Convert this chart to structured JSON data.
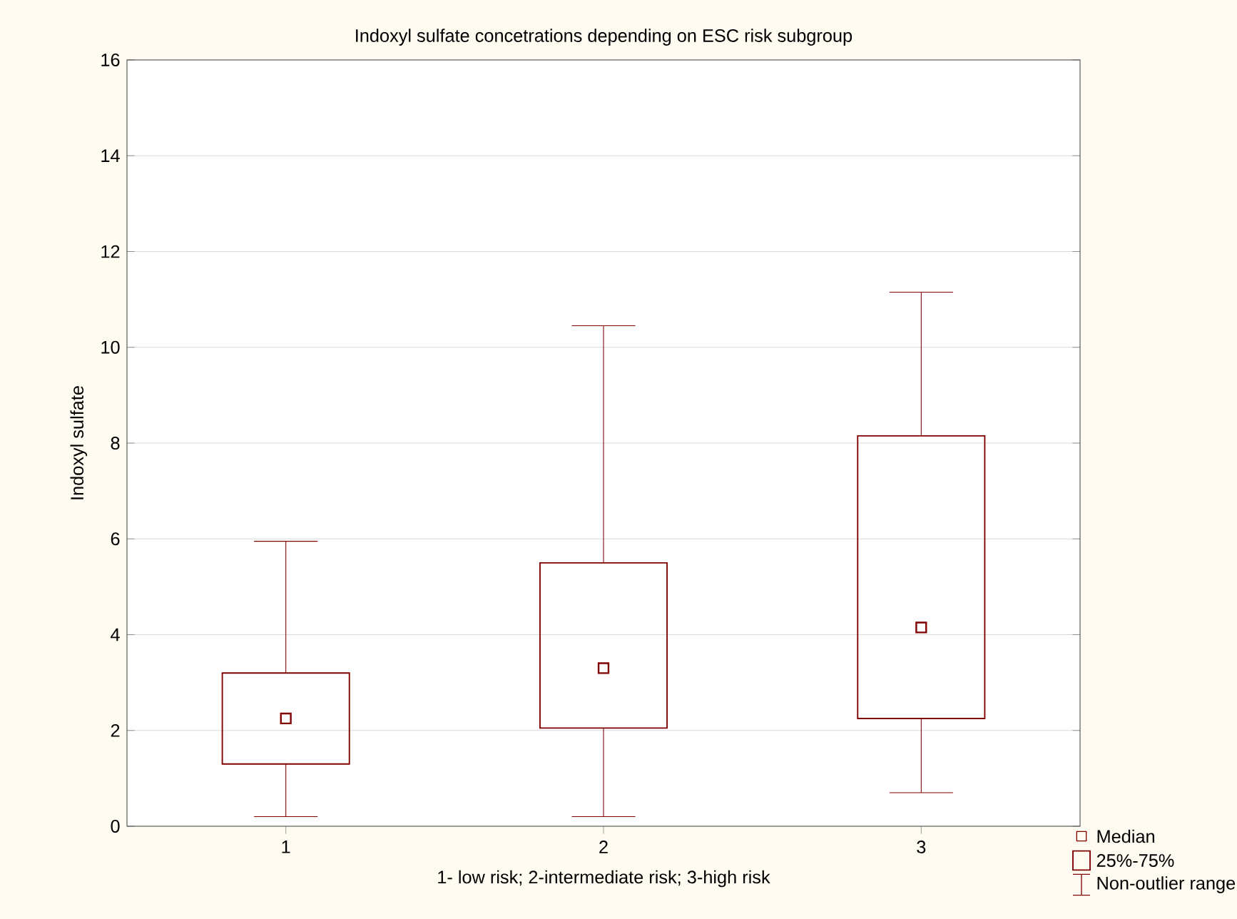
{
  "chart_data": {
    "type": "box",
    "title": "Indoxyl sulfate concetrations depending on ESC risk subgroup",
    "xlabel": "1- low risk; 2-intermediate risk; 3-high risk",
    "ylabel": "Indoxyl sulfate",
    "categories": [
      "1",
      "2",
      "3"
    ],
    "series": [
      {
        "color": "#800000",
        "boxes": [
          {
            "low": 0.2,
            "q1": 1.3,
            "median": 2.25,
            "q3": 3.2,
            "high": 5.95
          },
          {
            "low": 0.2,
            "q1": 2.05,
            "median": 3.3,
            "q3": 5.5,
            "high": 10.45
          },
          {
            "low": 0.7,
            "q1": 2.25,
            "median": 4.15,
            "q3": 8.15,
            "high": 11.15
          }
        ]
      }
    ],
    "ylim": [
      0,
      16
    ],
    "yticks": [
      0,
      2,
      4,
      6,
      8,
      10,
      12,
      14,
      16
    ],
    "grid": "y",
    "marker": "square",
    "annotations": [
      "Median",
      "25%-75%",
      "Non-outlier range"
    ]
  }
}
